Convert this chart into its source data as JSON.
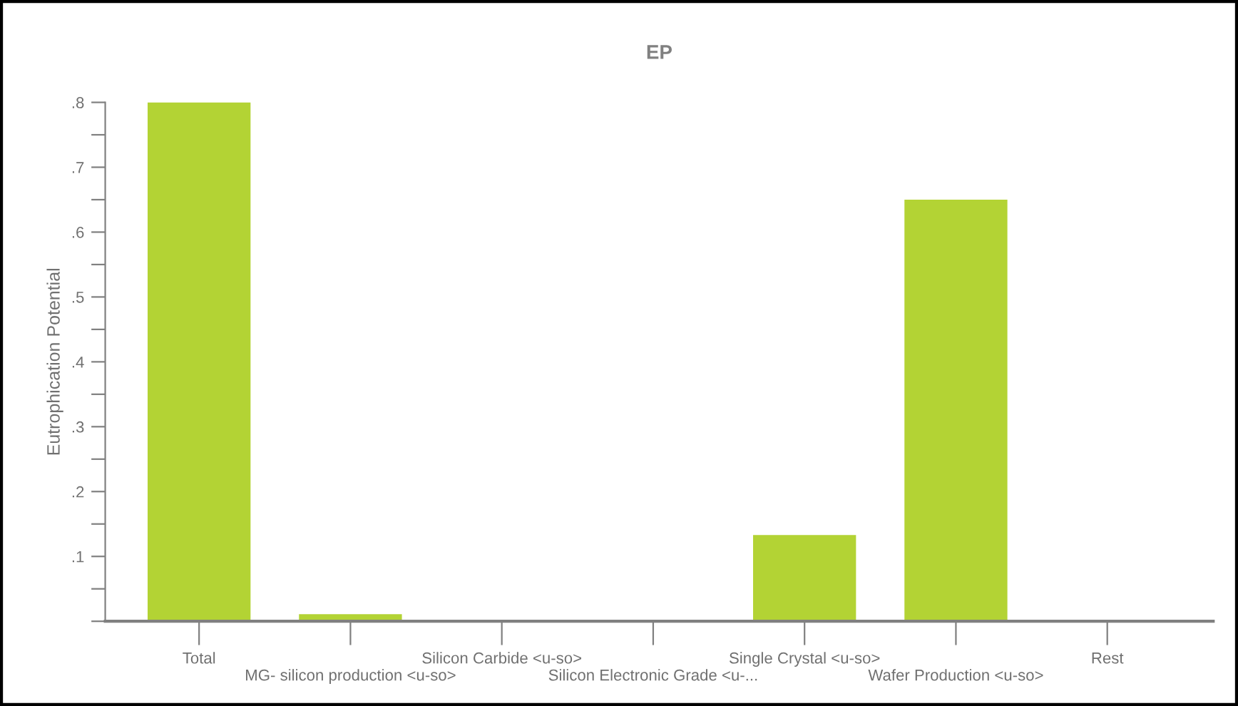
{
  "chart_data": {
    "type": "bar",
    "title": "EP",
    "ylabel": "Eutrophication Potential",
    "categories": [
      "Total",
      "MG- silicon production <u-so>",
      "Silicon Carbide <u-so>",
      "Silicon Electronic Grade <u-...",
      "Single Crystal <u-so>",
      "Wafer Production <u-so>",
      "Rest"
    ],
    "values": [
      0.8,
      0.011,
      0.002,
      0.002,
      0.133,
      0.65,
      0.002
    ],
    "color": "#b3d334",
    "ylim": [
      0,
      0.8
    ],
    "yticks": [
      {
        "value": 0,
        "label": null
      },
      {
        "value": 0.05,
        "label": null
      },
      {
        "value": 0.1,
        "label": ".1"
      },
      {
        "value": 0.15,
        "label": null
      },
      {
        "value": 0.2,
        "label": ".2"
      },
      {
        "value": 0.25,
        "label": null
      },
      {
        "value": 0.3,
        "label": ".3"
      },
      {
        "value": 0.35,
        "label": null
      },
      {
        "value": 0.4,
        "label": ".4"
      },
      {
        "value": 0.45,
        "label": null
      },
      {
        "value": 0.5,
        "label": ".5"
      },
      {
        "value": 0.55,
        "label": null
      },
      {
        "value": 0.6,
        "label": ".6"
      },
      {
        "value": 0.65,
        "label": null
      },
      {
        "value": 0.7,
        "label": ".7"
      },
      {
        "value": 0.75,
        "label": null
      },
      {
        "value": 0.8,
        "label": ".8"
      }
    ],
    "grid": false
  }
}
